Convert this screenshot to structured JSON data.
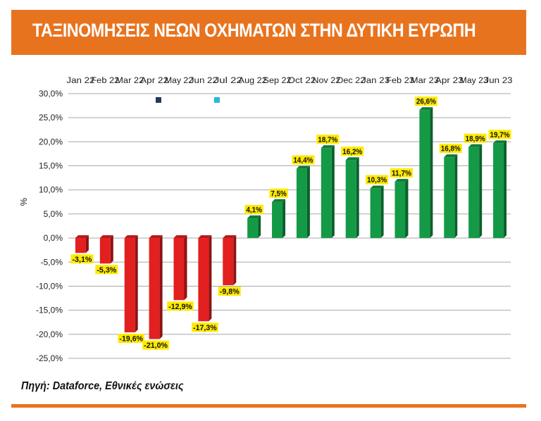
{
  "header": {
    "title": "ΤΑΞΙΝΟΜΗΣΕΙΣ ΝΕΩΝ ΟΧΗΜΑΤΩΝ ΣΤΗΝ ΔΥΤΙΚΗ ΕΥΡΩΠΗ"
  },
  "source": "Πηγή: Dataforce, Εθνικές ενώσεις",
  "colors": {
    "accent": "#e8731e",
    "negative": "#e2201f",
    "positive": "#149a46",
    "label_bg": "#ffea00",
    "legend_1": "#1f3b57",
    "legend_2": "#2bb7d9"
  },
  "chart_data": {
    "type": "bar",
    "categories": [
      "Jan 22",
      "Feb 22",
      "Mar 22",
      "Apr 22",
      "May 22",
      "Jun 22",
      "Jul 22",
      "Aug 22",
      "Sep 22",
      "Oct 22",
      "Nov 22",
      "Dec 22",
      "Jan 23",
      "Feb 23",
      "Mar 23",
      "Apr 23",
      "May 23",
      "Jun 23"
    ],
    "values": [
      -3.1,
      -5.3,
      -19.6,
      -21.0,
      -12.9,
      -17.3,
      -9.8,
      4.1,
      7.5,
      14.4,
      18.7,
      16.2,
      10.3,
      11.7,
      26.6,
      16.8,
      18.9,
      19.7
    ],
    "data_labels": [
      "-3,1%",
      "-5,3%",
      "-19,6%",
      "-21,0%",
      "-12,9%",
      "-17,3%",
      "-9,8%",
      "4,1%",
      "7,5%",
      "14,4%",
      "18,7%",
      "16,2%",
      "10,3%",
      "11,7%",
      "26,6%",
      "16,8%",
      "18,9%",
      "19,7%"
    ],
    "y_ticks": [
      30,
      25,
      20,
      15,
      10,
      5,
      0,
      -5,
      -10,
      -15,
      -20,
      -25
    ],
    "y_tick_labels": [
      "30,0%",
      "25,0%",
      "20,0%",
      "15,0%",
      "10,0%",
      "5,0%",
      "0,0%",
      "-5,0%",
      "-10,0%",
      "-15,0%",
      "-20,0%",
      "-25,0%"
    ],
    "ylim": [
      -25,
      30
    ],
    "ylabel": "%",
    "grid": true,
    "xaxis_position": "top"
  }
}
